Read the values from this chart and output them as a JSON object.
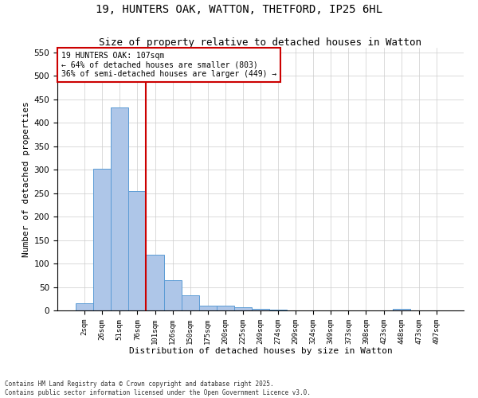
{
  "title_line1": "19, HUNTERS OAK, WATTON, THETFORD, IP25 6HL",
  "title_line2": "Size of property relative to detached houses in Watton",
  "xlabel": "Distribution of detached houses by size in Watton",
  "ylabel": "Number of detached properties",
  "footnote_line1": "Contains HM Land Registry data © Crown copyright and database right 2025.",
  "footnote_line2": "Contains public sector information licensed under the Open Government Licence v3.0.",
  "annotation_line1": "19 HUNTERS OAK: 107sqm",
  "annotation_line2": "← 64% of detached houses are smaller (803)",
  "annotation_line3": "36% of semi-detached houses are larger (449) →",
  "bar_categories": [
    "2sqm",
    "26sqm",
    "51sqm",
    "76sqm",
    "101sqm",
    "126sqm",
    "150sqm",
    "175sqm",
    "200sqm",
    "225sqm",
    "249sqm",
    "274sqm",
    "299sqm",
    "324sqm",
    "349sqm",
    "373sqm",
    "398sqm",
    "423sqm",
    "448sqm",
    "473sqm",
    "497sqm"
  ],
  "bar_values": [
    15,
    302,
    432,
    255,
    118,
    65,
    33,
    10,
    11,
    6,
    4,
    2,
    0,
    0,
    0,
    0,
    0,
    0,
    3,
    0,
    0
  ],
  "bar_color": "#aec6e8",
  "bar_edge_color": "#5b9bd5",
  "vline_color": "#cc0000",
  "vline_position": 4,
  "annotation_box_color": "#cc0000",
  "ylim": [
    0,
    560
  ],
  "yticks": [
    0,
    50,
    100,
    150,
    200,
    250,
    300,
    350,
    400,
    450,
    500,
    550
  ],
  "background_color": "#ffffff",
  "grid_color": "#cccccc",
  "title1_fontsize": 10,
  "title2_fontsize": 9,
  "xlabel_fontsize": 8,
  "ylabel_fontsize": 8,
  "tick_fontsize": 6.5,
  "annot_fontsize": 7,
  "footnote_fontsize": 5.5
}
